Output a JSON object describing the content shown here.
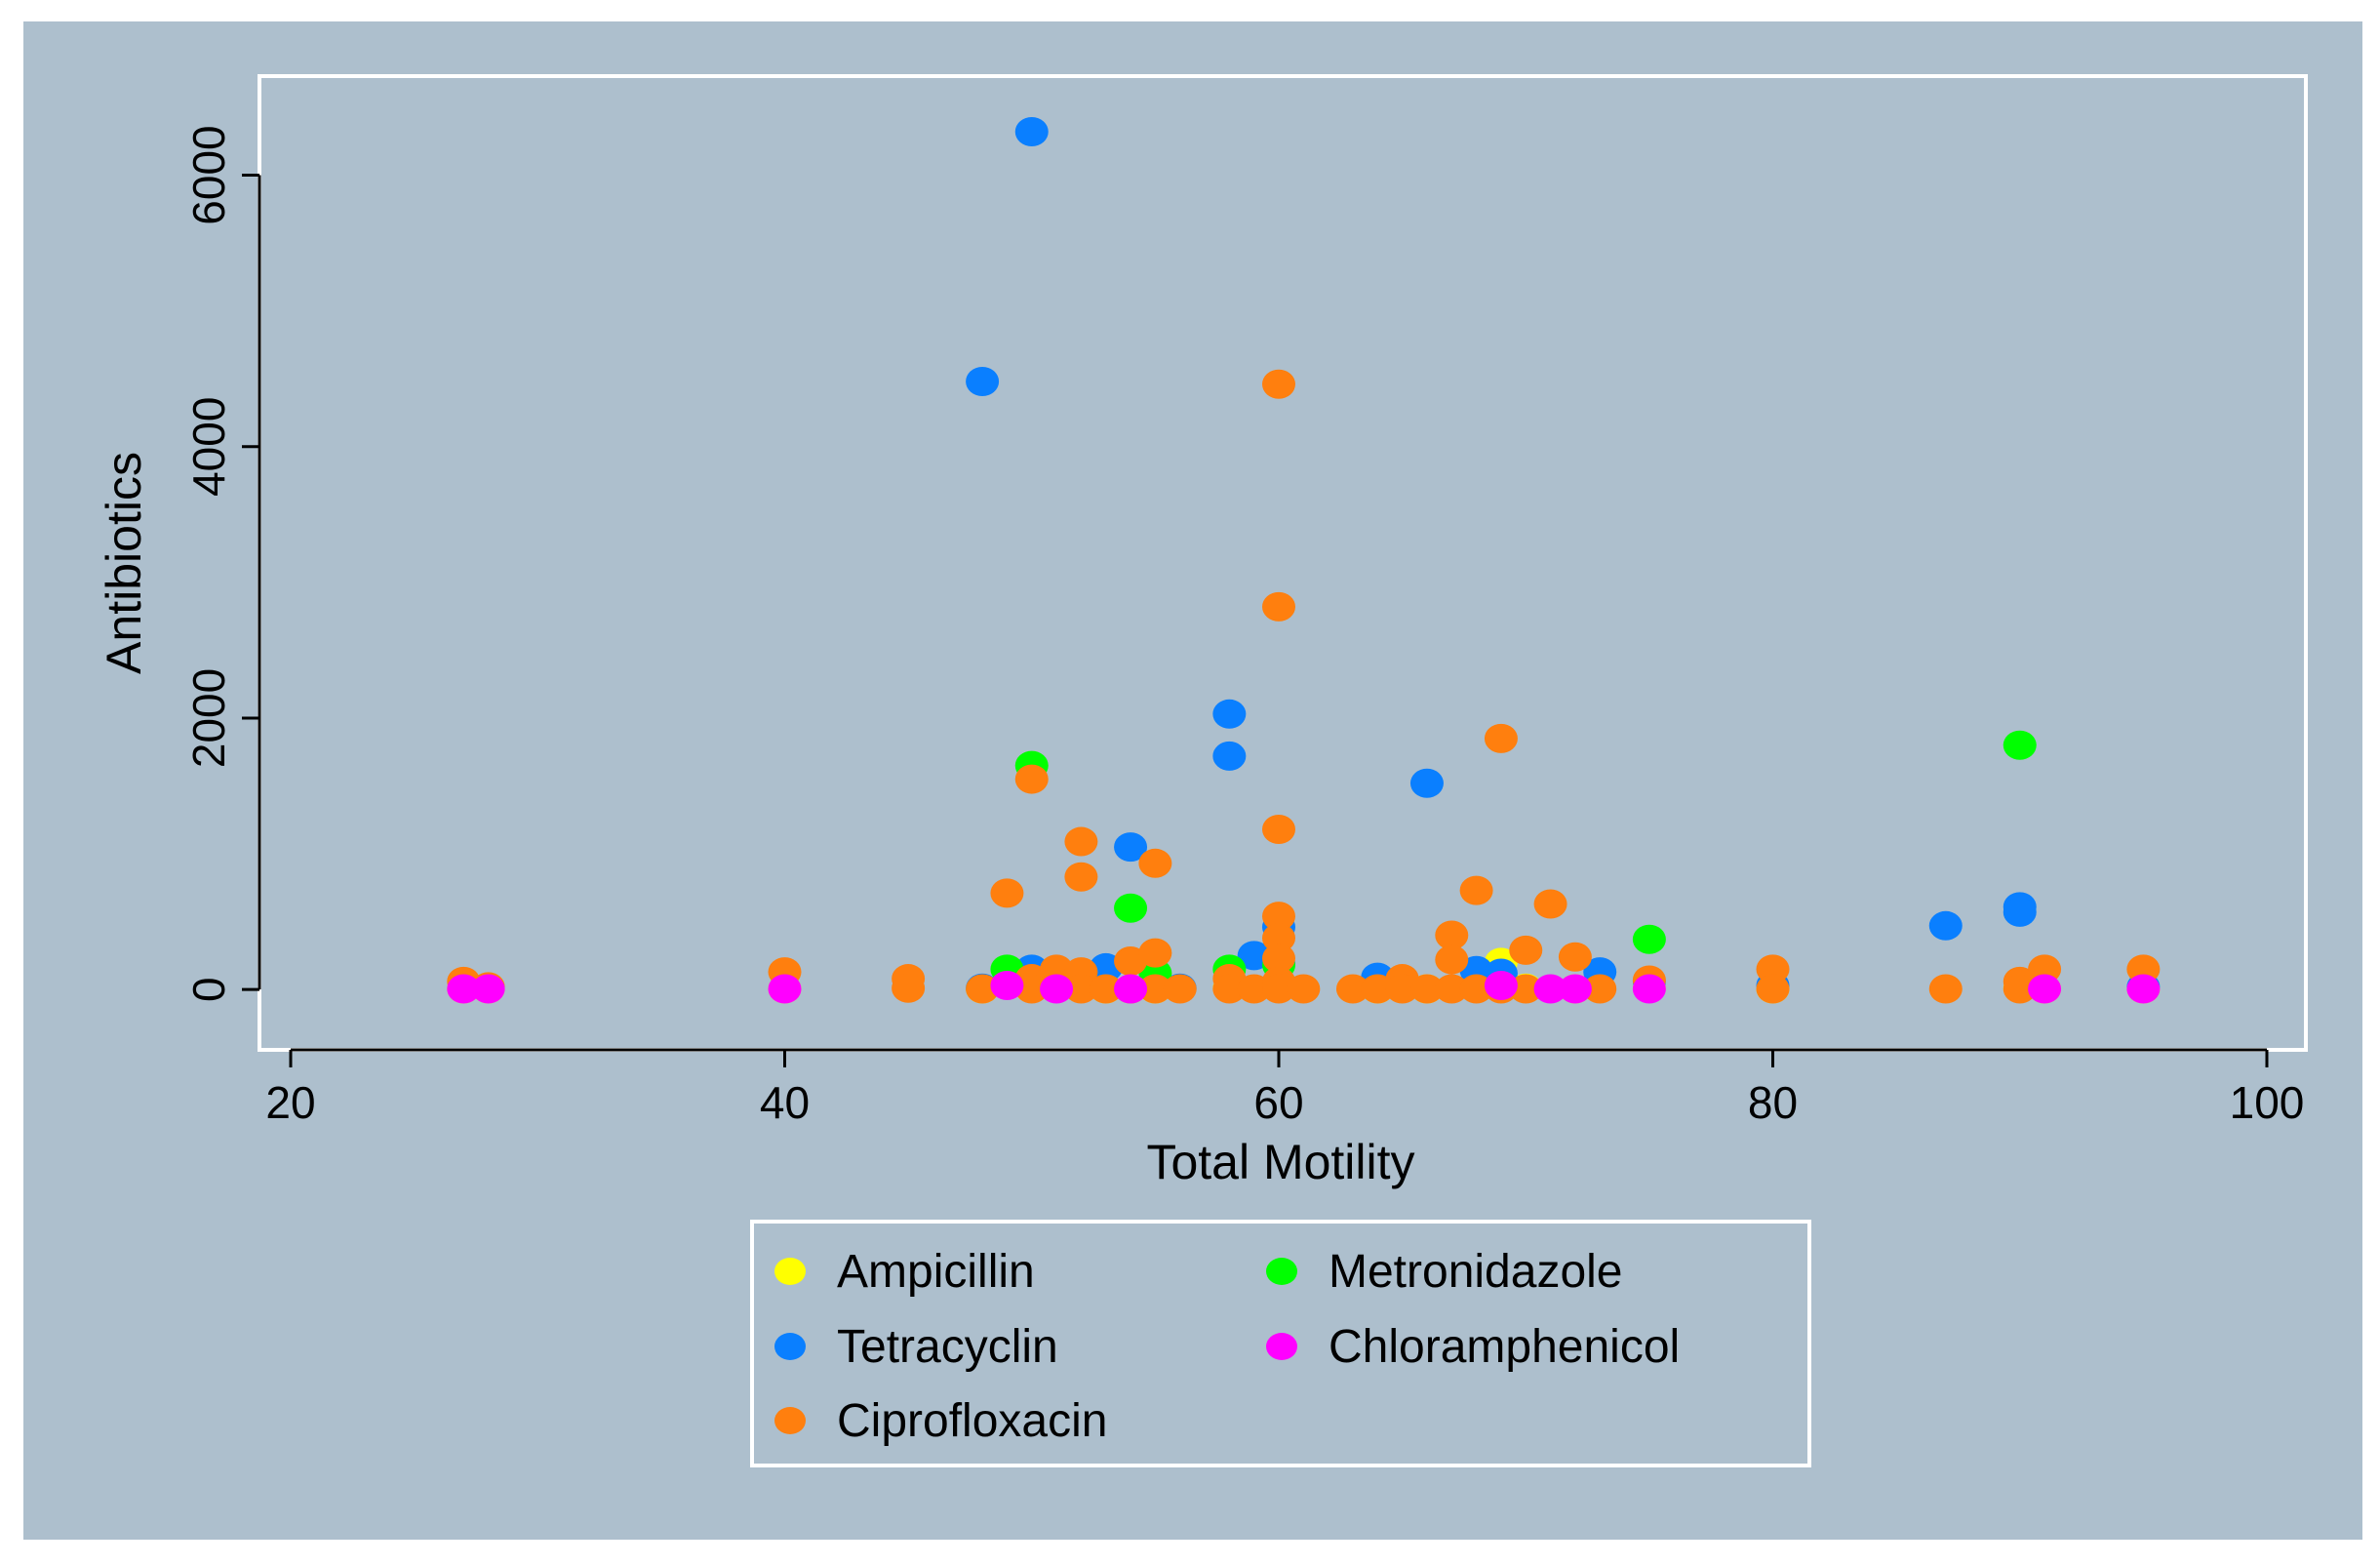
{
  "colors": {
    "background": "#ffffff",
    "panel": "#adbfcd",
    "frame": "#ffffff",
    "legend_bg": "#ffffff",
    "axis": "#000000"
  },
  "chart_data": {
    "type": "scatter",
    "title": "",
    "xlabel": "Total Motility",
    "ylabel": "Antibiotics",
    "xlim": [
      20,
      100
    ],
    "ylim": [
      -200,
      6500
    ],
    "x_ticks": [
      20,
      40,
      60,
      80,
      100
    ],
    "y_ticks": [
      0,
      2000,
      4000,
      6000
    ],
    "grid": false,
    "legend_position": "bottom",
    "series": [
      {
        "name": "Ampicillin",
        "color": "#ffff00",
        "points": [
          [
            27,
            5
          ],
          [
            28,
            5
          ],
          [
            40,
            5
          ],
          [
            48,
            5
          ],
          [
            50,
            10
          ],
          [
            51,
            10
          ],
          [
            53,
            5
          ],
          [
            55,
            5
          ],
          [
            58,
            10
          ],
          [
            60,
            10
          ],
          [
            64,
            5
          ],
          [
            66,
            5
          ],
          [
            68,
            20
          ],
          [
            69,
            200
          ],
          [
            70,
            10
          ],
          [
            72,
            5
          ],
          [
            75,
            10
          ],
          [
            80,
            5
          ],
          [
            90,
            10
          ],
          [
            91,
            5
          ],
          [
            95,
            5
          ]
        ]
      },
      {
        "name": "Tetracyclin",
        "color": "#0a7fff",
        "points": [
          [
            50,
            6320
          ],
          [
            48,
            4480
          ],
          [
            58,
            2030
          ],
          [
            58,
            1720
          ],
          [
            66,
            1520
          ],
          [
            54,
            1050
          ],
          [
            59,
            250
          ],
          [
            60,
            460
          ],
          [
            60,
            190
          ],
          [
            53,
            160
          ],
          [
            50,
            150
          ],
          [
            64,
            90
          ],
          [
            68,
            140
          ],
          [
            69,
            120
          ],
          [
            73,
            130
          ],
          [
            87,
            470
          ],
          [
            90,
            610
          ],
          [
            90,
            570
          ],
          [
            95,
            20
          ],
          [
            80,
            30
          ],
          [
            75,
            60
          ],
          [
            48,
            10
          ],
          [
            56,
            10
          ]
        ]
      },
      {
        "name": "Ciprofloxacin",
        "color": "#ff7f0e",
        "points": [
          [
            27,
            60
          ],
          [
            28,
            20
          ],
          [
            40,
            130
          ],
          [
            45,
            80
          ],
          [
            45,
            10
          ],
          [
            48,
            5
          ],
          [
            49,
            710
          ],
          [
            50,
            1550
          ],
          [
            50,
            80
          ],
          [
            50,
            5
          ],
          [
            51,
            150
          ],
          [
            52,
            1090
          ],
          [
            52,
            830
          ],
          [
            52,
            130
          ],
          [
            52,
            5
          ],
          [
            53,
            5
          ],
          [
            54,
            210
          ],
          [
            54,
            5
          ],
          [
            55,
            930
          ],
          [
            55,
            270
          ],
          [
            55,
            5
          ],
          [
            56,
            5
          ],
          [
            58,
            80
          ],
          [
            58,
            5
          ],
          [
            59,
            5
          ],
          [
            60,
            4460
          ],
          [
            60,
            2820
          ],
          [
            60,
            1180
          ],
          [
            60,
            540
          ],
          [
            60,
            380
          ],
          [
            60,
            230
          ],
          [
            60,
            60
          ],
          [
            60,
            5
          ],
          [
            61,
            5
          ],
          [
            63,
            5
          ],
          [
            64,
            5
          ],
          [
            65,
            80
          ],
          [
            65,
            5
          ],
          [
            66,
            5
          ],
          [
            67,
            400
          ],
          [
            67,
            220
          ],
          [
            67,
            5
          ],
          [
            68,
            730
          ],
          [
            68,
            5
          ],
          [
            69,
            1850
          ],
          [
            69,
            5
          ],
          [
            70,
            290
          ],
          [
            70,
            5
          ],
          [
            71,
            630
          ],
          [
            72,
            240
          ],
          [
            73,
            5
          ],
          [
            75,
            70
          ],
          [
            80,
            150
          ],
          [
            80,
            5
          ],
          [
            87,
            5
          ],
          [
            90,
            60
          ],
          [
            90,
            5
          ],
          [
            91,
            150
          ],
          [
            95,
            150
          ]
        ]
      },
      {
        "name": "Metronidazole",
        "color": "#00ff00",
        "points": [
          [
            50,
            1650
          ],
          [
            49,
            150
          ],
          [
            54,
            600
          ],
          [
            55,
            120
          ],
          [
            58,
            150
          ],
          [
            60,
            180
          ],
          [
            75,
            370
          ],
          [
            90,
            1800
          ]
        ]
      },
      {
        "name": "Chloramphenicol",
        "color": "#ff00ff",
        "points": [
          [
            27,
            5
          ],
          [
            28,
            5
          ],
          [
            40,
            5
          ],
          [
            49,
            30
          ],
          [
            51,
            5
          ],
          [
            54,
            5
          ],
          [
            69,
            30
          ],
          [
            71,
            5
          ],
          [
            72,
            5
          ],
          [
            75,
            5
          ],
          [
            91,
            5
          ],
          [
            95,
            5
          ]
        ]
      }
    ]
  }
}
